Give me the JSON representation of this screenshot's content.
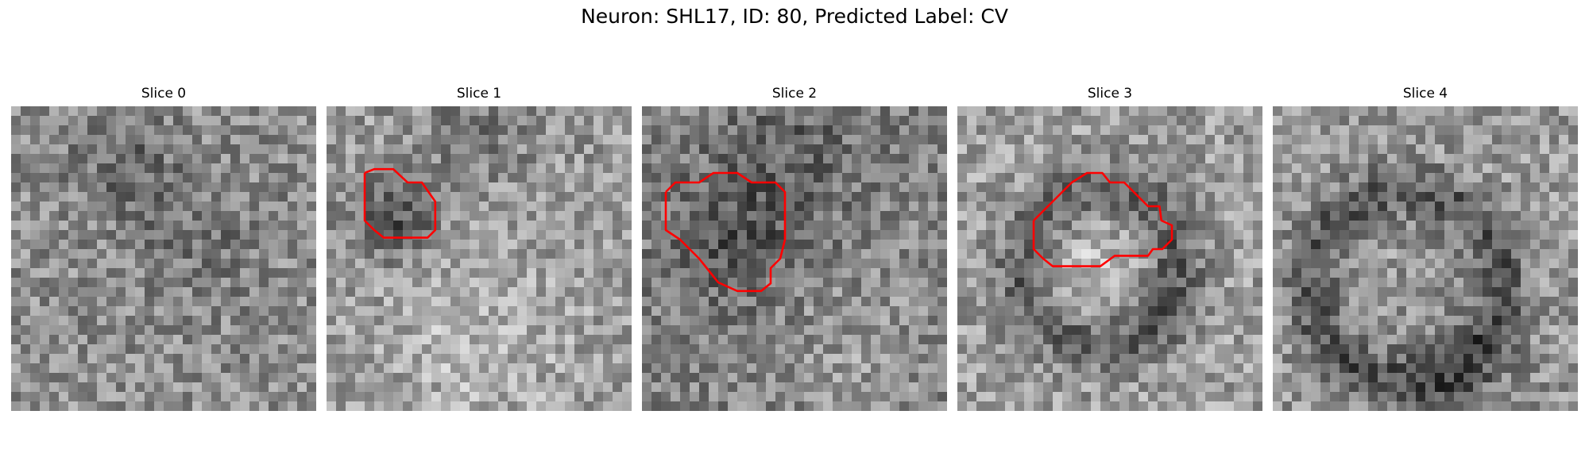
{
  "figure": {
    "title": "Neuron: SHL17, ID: 80, Predicted Label: CV"
  },
  "panels": [
    {
      "title": "Slice 0"
    },
    {
      "title": "Slice 1"
    },
    {
      "title": "Slice 2"
    },
    {
      "title": "Slice 3"
    },
    {
      "title": "Slice 4"
    }
  ],
  "colors": {
    "contour": "#ff0000",
    "background": "#ffffff"
  }
}
